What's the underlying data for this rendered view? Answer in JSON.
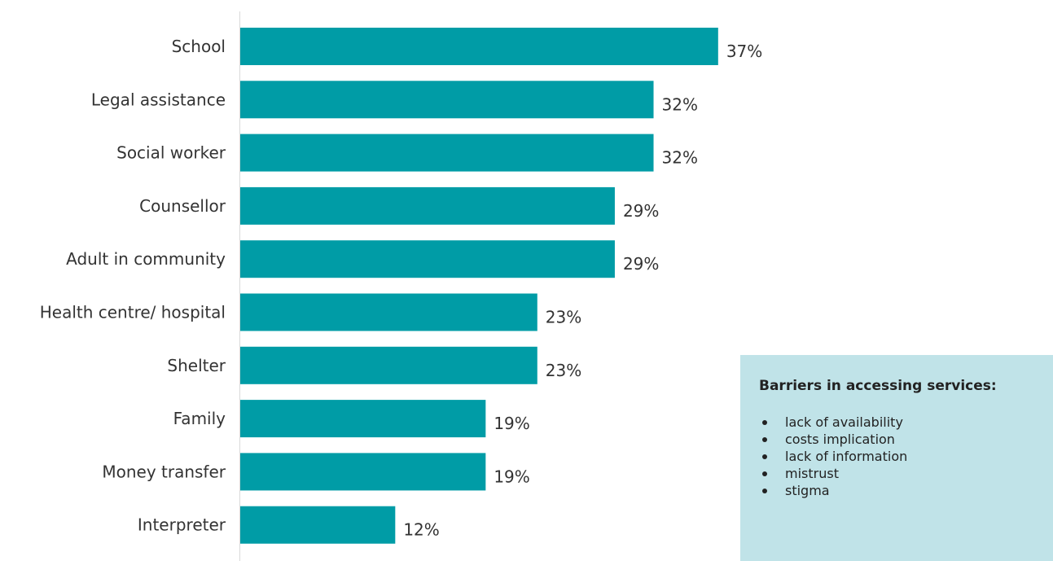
{
  "chart_data": {
    "type": "bar",
    "orientation": "horizontal",
    "categories": [
      "School",
      "Legal assistance",
      "Social worker",
      "Counsellor",
      "Adult in community",
      "Health centre/ hospital",
      "Shelter",
      "Family",
      "Money transfer",
      "Interpreter"
    ],
    "values": [
      37,
      32,
      32,
      29,
      29,
      23,
      23,
      19,
      19,
      12
    ],
    "value_labels": [
      "37%",
      "32%",
      "32%",
      "29%",
      "29%",
      "23%",
      "23%",
      "19%",
      "19%",
      "12%"
    ],
    "bar_color": "#009ca6",
    "xlim": [
      0,
      100
    ],
    "grid": false,
    "legend": "none"
  },
  "info_box": {
    "title": "Barriers in accessing services:",
    "items": [
      "lack of availability",
      "costs implication",
      "lack of information",
      "mistrust",
      "stigma"
    ],
    "background_color": "#c0e3e8"
  }
}
